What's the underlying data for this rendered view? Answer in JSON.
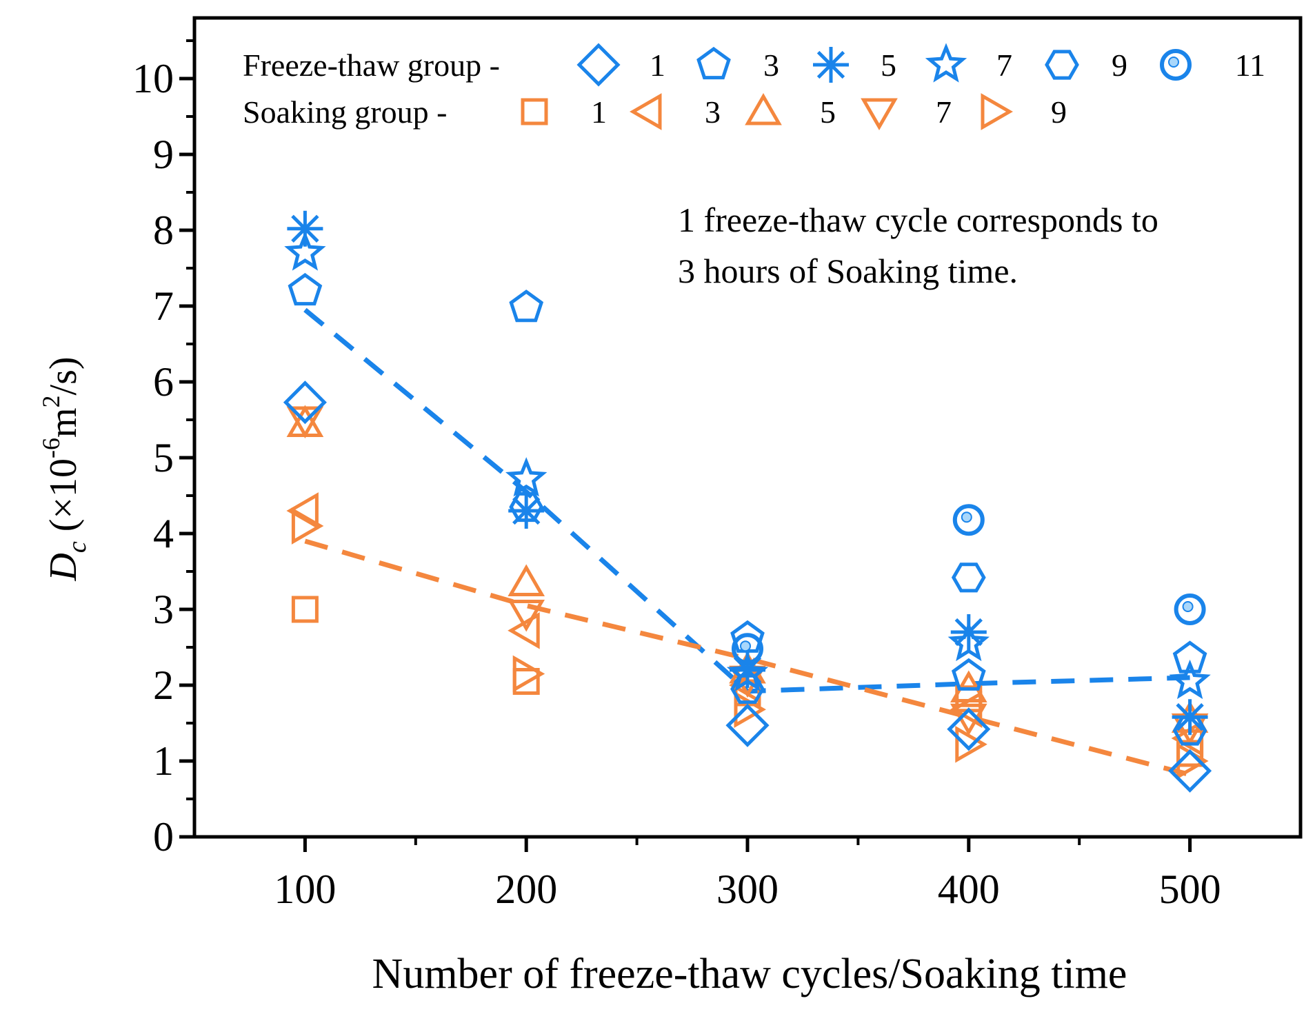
{
  "chart_data": {
    "type": "scatter",
    "title": "",
    "xlabel": "Number of freeze-thaw cycles/Soaking time",
    "ylabel": {
      "symbol": "D",
      "subscript": "c",
      "unit_prefix": " (×10",
      "exponent1": "-6",
      "unit_mid": "m",
      "exponent2": "2",
      "unit_suffix": "/s)"
    },
    "x_categories": [
      100,
      200,
      300,
      400,
      500
    ],
    "x_ticks": [
      "100",
      "200",
      "300",
      "400",
      "500"
    ],
    "xlim": [
      50,
      550
    ],
    "ylim": [
      0,
      10.8
    ],
    "y_ticks": [
      "0",
      "1",
      "2",
      "3",
      "4",
      "5",
      "6",
      "7",
      "8",
      "9",
      "10"
    ],
    "grid": false,
    "annotation": [
      "1 freeze-thaw cycle corresponds to",
      "3 hours of Soaking time."
    ],
    "legend": {
      "placement": "top",
      "freeze_thaw_title": "Freeze-thaw group -",
      "soaking_title": "Soaking group -"
    },
    "colors": {
      "freeze_thaw": "#1a84ea",
      "soaking": "#f4873e",
      "axis": "#000000"
    },
    "freeze_thaw_group": [
      {
        "name": "1",
        "marker": "diamond",
        "points": [
          [
            100,
            5.73
          ],
          [
            300,
            1.47
          ],
          [
            400,
            1.42
          ],
          [
            500,
            0.87
          ]
        ]
      },
      {
        "name": "3",
        "marker": "pentagon",
        "points": [
          [
            100,
            7.2
          ],
          [
            200,
            6.98
          ],
          [
            300,
            2.62
          ],
          [
            400,
            2.12
          ],
          [
            500,
            2.35
          ]
        ]
      },
      {
        "name": "5",
        "marker": "asterisk",
        "points": [
          [
            100,
            8.02
          ],
          [
            200,
            4.3
          ],
          [
            300,
            2.2
          ],
          [
            400,
            2.7
          ],
          [
            500,
            1.58
          ]
        ]
      },
      {
        "name": "7",
        "marker": "star",
        "points": [
          [
            100,
            7.7
          ],
          [
            200,
            4.72
          ],
          [
            300,
            2.15
          ],
          [
            400,
            2.55
          ],
          [
            500,
            2.05
          ]
        ]
      },
      {
        "name": "9",
        "marker": "hexagon",
        "points": [
          [
            200,
            4.35
          ],
          [
            300,
            1.95
          ],
          [
            400,
            3.42
          ],
          [
            500,
            1.4
          ]
        ]
      },
      {
        "name": "11",
        "marker": "circle",
        "points": [
          [
            300,
            2.48
          ],
          [
            400,
            4.18
          ],
          [
            500,
            3.0
          ]
        ]
      }
    ],
    "soaking_group": [
      {
        "name": "1",
        "marker": "square",
        "points": [
          [
            100,
            3.0
          ],
          [
            200,
            2.05
          ],
          [
            300,
            1.9
          ],
          [
            400,
            1.82
          ],
          [
            500,
            1.1
          ]
        ]
      },
      {
        "name": "3",
        "marker": "triangle-left",
        "points": [
          [
            100,
            4.3
          ],
          [
            200,
            2.72
          ],
          [
            300,
            2.0
          ],
          [
            400,
            1.68
          ],
          [
            500,
            1.3
          ]
        ]
      },
      {
        "name": "5",
        "marker": "triangle-up",
        "points": [
          [
            100,
            5.45
          ],
          [
            200,
            3.35
          ],
          [
            300,
            2.2
          ],
          [
            400,
            1.95
          ],
          [
            500,
            1.55
          ]
        ]
      },
      {
        "name": "7",
        "marker": "triangle-down",
        "points": [
          [
            100,
            5.5
          ],
          [
            200,
            2.95
          ],
          [
            300,
            2.08
          ],
          [
            400,
            1.58
          ],
          [
            500,
            1.45
          ]
        ]
      },
      {
        "name": "9",
        "marker": "triangle-right",
        "points": [
          [
            100,
            4.1
          ],
          [
            200,
            2.15
          ],
          [
            300,
            1.68
          ],
          [
            400,
            1.22
          ],
          [
            500,
            1.0
          ]
        ]
      }
    ],
    "trend_lines": [
      {
        "name": "Freeze-thaw trend",
        "group": "freeze_thaw",
        "points": [
          [
            100,
            6.95
          ],
          [
            200,
            4.55
          ],
          [
            300,
            1.92
          ],
          [
            400,
            2.02
          ],
          [
            500,
            2.1
          ]
        ]
      },
      {
        "name": "Soaking trend",
        "group": "soaking",
        "points": [
          [
            100,
            3.9
          ],
          [
            200,
            3.05
          ],
          [
            300,
            2.35
          ],
          [
            400,
            1.58
          ],
          [
            500,
            0.82
          ]
        ]
      }
    ]
  }
}
